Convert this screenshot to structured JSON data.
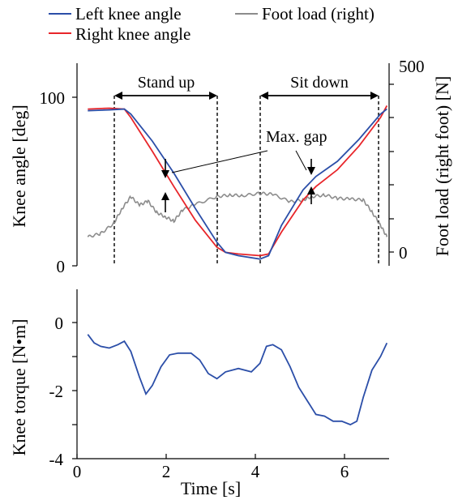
{
  "chart_data": [
    {
      "type": "line",
      "title": "",
      "xlabel": "",
      "ylabel": "Knee angle [deg]",
      "y2label": "Foot load (right foot) [N]",
      "xlim": [
        -0.25,
        7.0
      ],
      "ylim": [
        0,
        120
      ],
      "y2lim": [
        -100,
        500
      ],
      "yticks": [
        "0",
        "100"
      ],
      "y2ticks": [
        "0",
        "500"
      ],
      "grid": false,
      "legend": {
        "placement": "top",
        "entries": [
          {
            "name": "Left knee angle",
            "color": "#2b4ea8"
          },
          {
            "name": "Right knee angle",
            "color": "#e8252a"
          },
          {
            "name": "Foot load (right)",
            "color": "#8c8c8c"
          }
        ]
      },
      "series": [
        {
          "name": "Left knee angle",
          "color": "#2b4ea8",
          "axis": "left",
          "x": [
            0,
            0.5,
            0.85,
            1.0,
            1.5,
            2.0,
            2.5,
            3.0,
            3.2,
            3.5,
            4.0,
            4.2,
            4.5,
            5.0,
            5.3,
            5.8,
            6.3,
            6.8,
            6.95
          ],
          "y": [
            92,
            92.5,
            93,
            90,
            74,
            55,
            34,
            14,
            8,
            6,
            4,
            6,
            24,
            45,
            53,
            62,
            75,
            90,
            93
          ]
        },
        {
          "name": "Right knee angle",
          "color": "#e8252a",
          "axis": "left",
          "x": [
            0,
            0.5,
            0.85,
            1.0,
            1.5,
            2.0,
            2.5,
            3.0,
            3.2,
            3.5,
            4.0,
            4.2,
            4.5,
            5.0,
            5.3,
            5.8,
            6.3,
            6.8,
            6.95
          ],
          "y": [
            93,
            93.5,
            93,
            88,
            68,
            47,
            27,
            11,
            8,
            7,
            6,
            7,
            20,
            39,
            47,
            57,
            71,
            88,
            95
          ]
        },
        {
          "name": "Foot load (right)",
          "color": "#8c8c8c",
          "axis": "right",
          "x": [
            0,
            0.3,
            0.6,
            0.8,
            1.0,
            1.2,
            1.4,
            1.6,
            1.8,
            2.0,
            2.2,
            2.5,
            3.0,
            3.3,
            3.6,
            4.0,
            4.3,
            4.7,
            5.0,
            5.2,
            5.5,
            5.8,
            6.1,
            6.4,
            6.6,
            6.8,
            6.95
          ],
          "y": [
            45,
            55,
            85,
            130,
            165,
            140,
            152,
            118,
            105,
            92,
            125,
            142,
            165,
            170,
            168,
            175,
            172,
            150,
            155,
            165,
            170,
            160,
            158,
            155,
            120,
            80,
            45
          ]
        }
      ],
      "annotations": {
        "stand_up": {
          "label": "Stand up",
          "x_start": 0.85,
          "x_end": 3.2
        },
        "sit_down": {
          "label": "Sit down",
          "x_start": 4.2,
          "x_end": 6.85
        },
        "max_gap": {
          "label": "Max. gap",
          "x": [
            2.0,
            5.3
          ]
        }
      }
    },
    {
      "type": "line",
      "title": "",
      "xlabel": "Time [s]",
      "ylabel": "Knee torque [N•m]",
      "xlim": [
        -0.25,
        7.0
      ],
      "ylim": [
        -4,
        1
      ],
      "xticks": [
        "0",
        "2",
        "4",
        "6"
      ],
      "yticks": [
        "0",
        "-2",
        "-4"
      ],
      "grid": false,
      "series": [
        {
          "name": "",
          "color": "#2b4ea8",
          "x": [
            0,
            0.15,
            0.3,
            0.5,
            0.7,
            0.85,
            1.0,
            1.2,
            1.35,
            1.5,
            1.7,
            1.9,
            2.1,
            2.4,
            2.6,
            2.8,
            3.0,
            3.2,
            3.5,
            3.8,
            4.0,
            4.15,
            4.3,
            4.5,
            4.7,
            4.9,
            5.1,
            5.3,
            5.5,
            5.7,
            5.9,
            6.1,
            6.25,
            6.4,
            6.6,
            6.8,
            6.95
          ],
          "y": [
            -0.35,
            -0.6,
            -0.7,
            -0.75,
            -0.65,
            -0.55,
            -0.85,
            -1.6,
            -2.1,
            -1.85,
            -1.3,
            -0.95,
            -0.9,
            -0.9,
            -1.1,
            -1.5,
            -1.65,
            -1.45,
            -1.35,
            -1.45,
            -1.2,
            -0.7,
            -0.65,
            -0.8,
            -1.3,
            -1.9,
            -2.3,
            -2.7,
            -2.75,
            -2.9,
            -2.9,
            -3.0,
            -2.9,
            -2.2,
            -1.4,
            -1.0,
            -0.6
          ]
        }
      ]
    }
  ]
}
